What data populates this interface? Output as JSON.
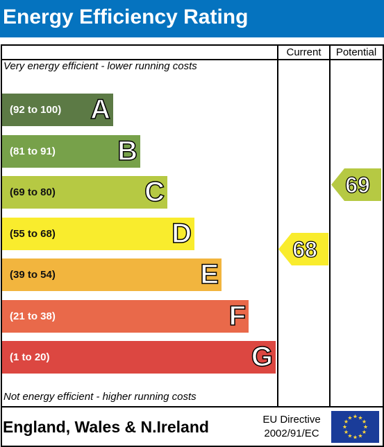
{
  "header": {
    "title": "Energy Efficiency Rating"
  },
  "columns": {
    "current": "Current",
    "potential": "Potential"
  },
  "notes": {
    "top": "Very energy efficient - lower running costs",
    "bottom": "Not energy efficient - higher running costs"
  },
  "chart_data": {
    "type": "bar",
    "title": "Energy Efficiency Rating",
    "bands": [
      {
        "letter": "A",
        "range": "(92 to 100)",
        "color": "#5c7a45"
      },
      {
        "letter": "B",
        "range": "(81 to 91)",
        "color": "#77a14a"
      },
      {
        "letter": "C",
        "range": "(69 to 80)",
        "color": "#b6c943"
      },
      {
        "letter": "D",
        "range": "(55 to 68)",
        "color": "#f9ec2d"
      },
      {
        "letter": "E",
        "range": "(39 to 54)",
        "color": "#f2b53e"
      },
      {
        "letter": "F",
        "range": "(21 to 38)",
        "color": "#e9694a"
      },
      {
        "letter": "G",
        "range": "(1 to 20)",
        "color": "#dc4741"
      }
    ],
    "current": {
      "value": 68,
      "band": "D",
      "color": "#f9ec2d"
    },
    "potential": {
      "value": 69,
      "band": "C",
      "color": "#b6c943"
    }
  },
  "footer": {
    "region": "England, Wales & N.Ireland",
    "directive_line1": "EU Directive",
    "directive_line2": "2002/91/EC",
    "flag_icon": "eu-flag-icon"
  }
}
